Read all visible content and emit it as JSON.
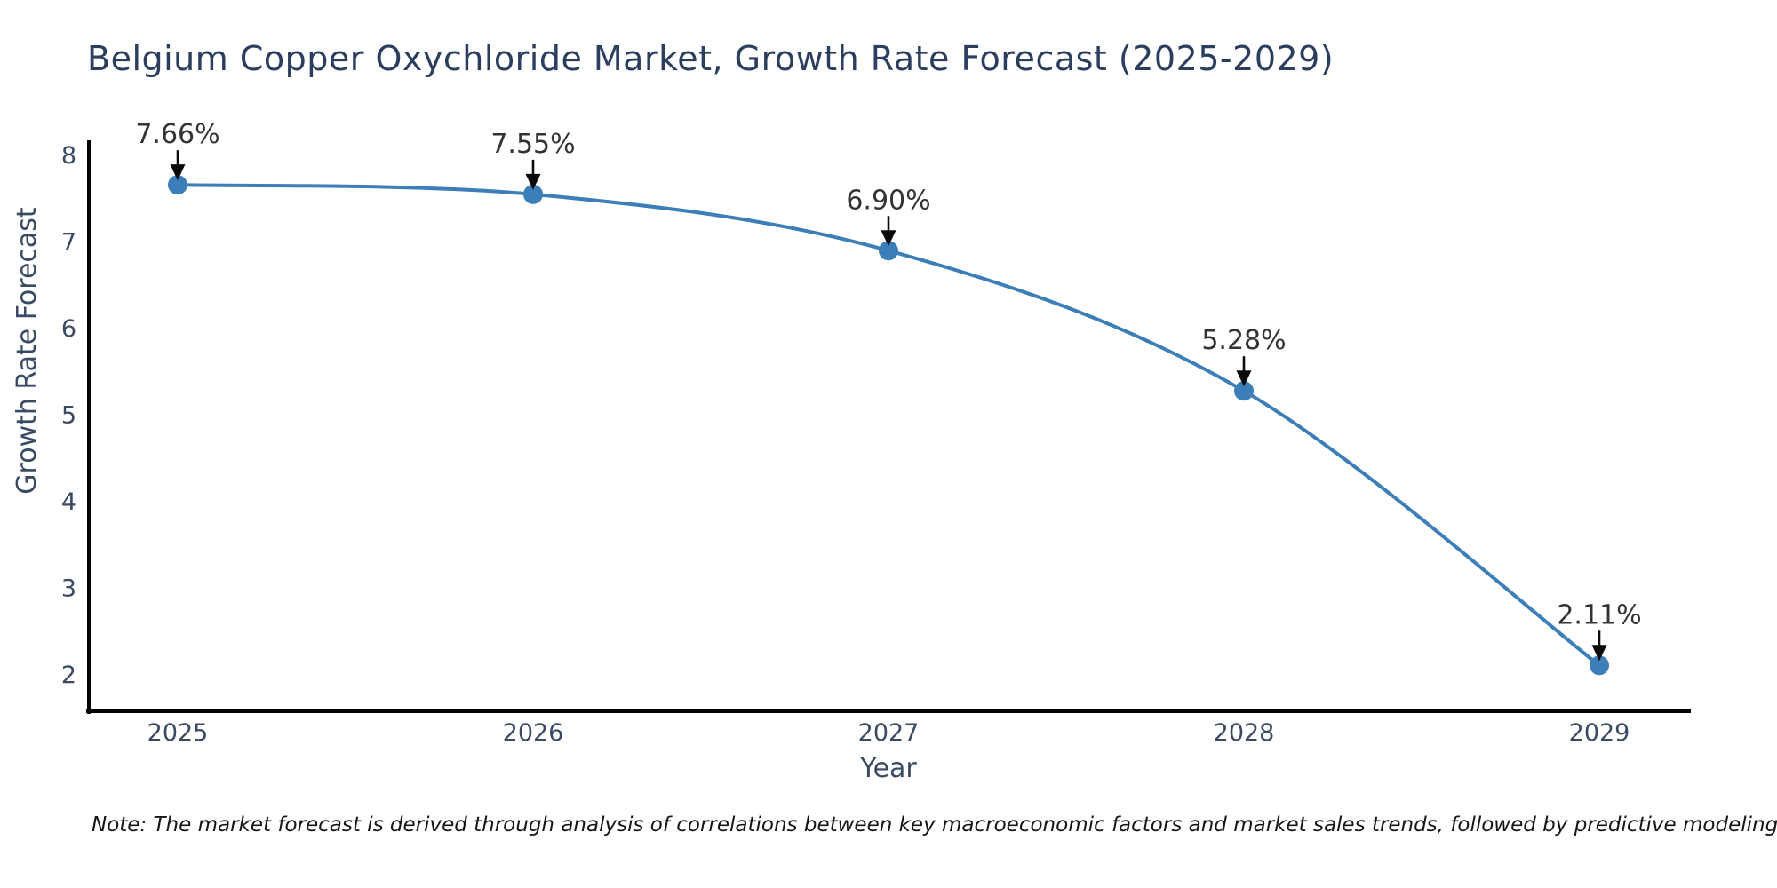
{
  "title": "Belgium Copper Oxychloride Market, Growth Rate Forecast (2025-2029)",
  "note": "Note: The market forecast is derived through analysis of correlations between key macroeconomic factors and market sales trends, followed by predictive modeling to project future sales.",
  "chart_data": {
    "type": "line",
    "title": "Belgium Copper Oxychloride Market, Growth Rate Forecast (2025-2029)",
    "xlabel": "Year",
    "ylabel": "Growth Rate Forecast",
    "categories": [
      2025,
      2026,
      2027,
      2028,
      2029
    ],
    "values": [
      7.66,
      7.55,
      6.9,
      5.28,
      2.11
    ],
    "point_labels": [
      "7.66%",
      "7.55%",
      "6.90%",
      "5.28%",
      "2.11%"
    ],
    "yticks": [
      2,
      3,
      4,
      5,
      6,
      7,
      8
    ],
    "xticks": [
      "2025",
      "2026",
      "2027",
      "2028",
      "2029"
    ],
    "ylim": [
      1.9,
      8.2
    ],
    "grid": false,
    "legend": false,
    "colors": {
      "line": "#3c7eb8",
      "marker": "#3c7eb8",
      "annotation_text": "#333333",
      "arrow": "#0a0a0a",
      "axis_spine": "#000000",
      "tick_label": "#3b4a63",
      "title": "#2b3e5e"
    }
  }
}
